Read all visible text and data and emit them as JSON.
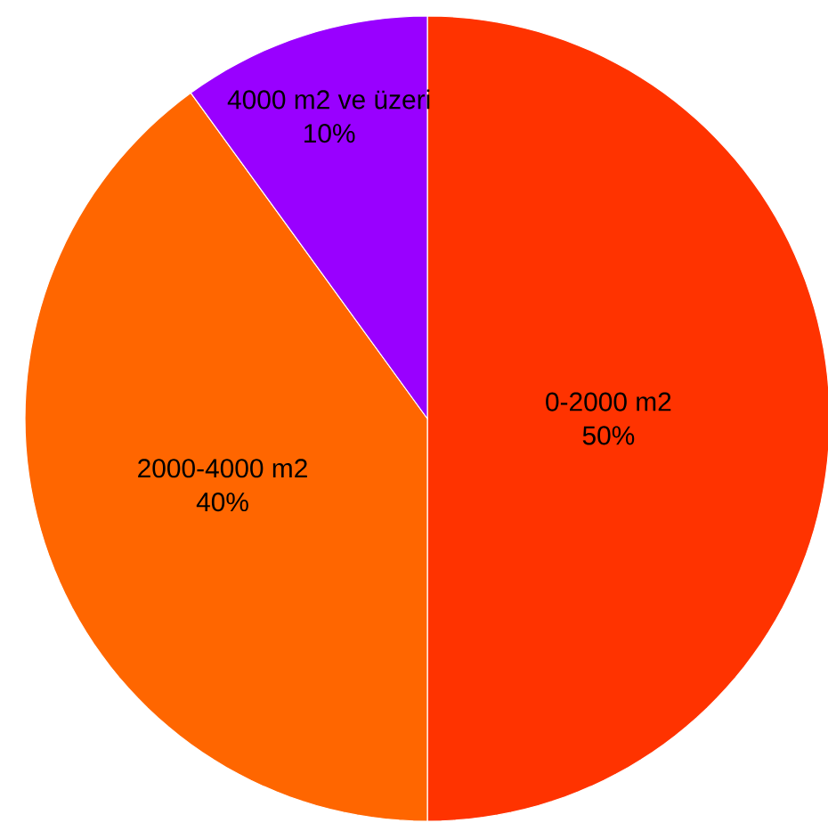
{
  "chart_data": {
    "type": "pie",
    "categories": [
      "0-2000 m2",
      "2000-4000 m2",
      "4000 m2 ve üzeri"
    ],
    "values": [
      50,
      40,
      10
    ],
    "colors": [
      "#ff3300",
      "#ff6600",
      "#9900ff"
    ],
    "value_labels": [
      "50%",
      "40%",
      "10%"
    ]
  }
}
